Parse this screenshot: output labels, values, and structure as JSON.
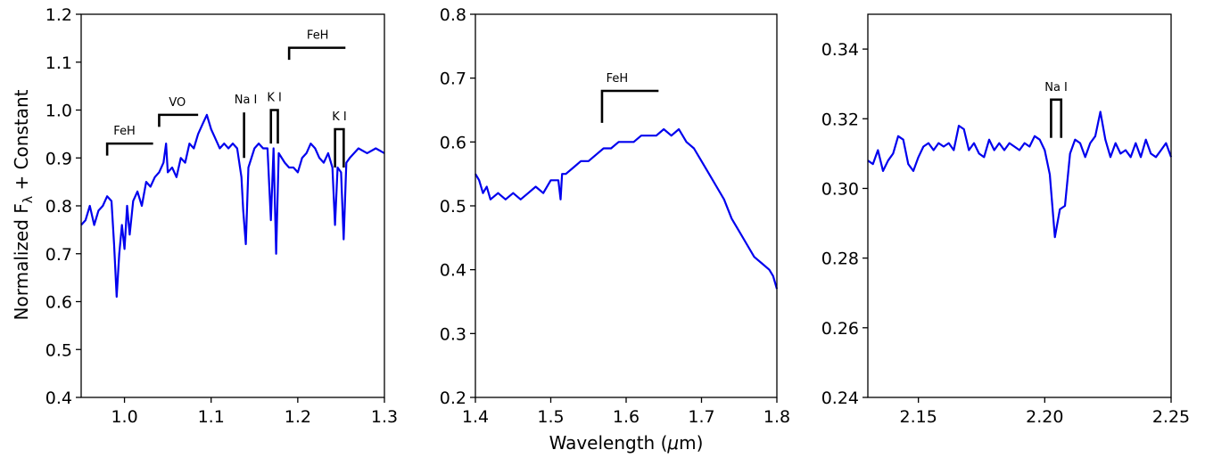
{
  "figure": {
    "xlabel_text": "Wavelength (",
    "xlabel_mu": "μ",
    "xlabel_unit": "m)",
    "ylabel_main": "Normalized F",
    "ylabel_sub": "λ",
    "ylabel_tail": " + Constant",
    "line_color": "#0000ee"
  },
  "chart_data": [
    {
      "type": "line",
      "xlim": [
        0.95,
        1.3
      ],
      "ylim": [
        0.4,
        1.2
      ],
      "xticks": [
        1.0,
        1.1,
        1.2,
        1.3
      ],
      "xtick_labels": [
        "1.0",
        "1.1",
        "1.2",
        "1.3"
      ],
      "yticks": [
        0.4,
        0.5,
        0.6,
        0.7,
        0.8,
        0.9,
        1.0,
        1.1,
        1.2
      ],
      "ytick_labels": [
        "0.4",
        "0.5",
        "0.6",
        "0.7",
        "0.8",
        "0.9",
        "1.0",
        "1.1",
        "1.2"
      ],
      "grid": false,
      "series": [
        {
          "points": [
            [
              0.95,
              0.76
            ],
            [
              0.955,
              0.77
            ],
            [
              0.96,
              0.8
            ],
            [
              0.965,
              0.76
            ],
            [
              0.97,
              0.79
            ],
            [
              0.975,
              0.8
            ],
            [
              0.98,
              0.82
            ],
            [
              0.985,
              0.81
            ],
            [
              0.988,
              0.72
            ],
            [
              0.991,
              0.61
            ],
            [
              0.994,
              0.7
            ],
            [
              0.997,
              0.76
            ],
            [
              1.0,
              0.71
            ],
            [
              1.003,
              0.8
            ],
            [
              1.006,
              0.74
            ],
            [
              1.01,
              0.81
            ],
            [
              1.015,
              0.83
            ],
            [
              1.02,
              0.8
            ],
            [
              1.025,
              0.85
            ],
            [
              1.03,
              0.84
            ],
            [
              1.035,
              0.86
            ],
            [
              1.04,
              0.87
            ],
            [
              1.045,
              0.89
            ],
            [
              1.048,
              0.93
            ],
            [
              1.05,
              0.87
            ],
            [
              1.055,
              0.88
            ],
            [
              1.06,
              0.86
            ],
            [
              1.065,
              0.9
            ],
            [
              1.07,
              0.89
            ],
            [
              1.075,
              0.93
            ],
            [
              1.08,
              0.92
            ],
            [
              1.085,
              0.95
            ],
            [
              1.09,
              0.97
            ],
            [
              1.095,
              0.99
            ],
            [
              1.1,
              0.96
            ],
            [
              1.105,
              0.94
            ],
            [
              1.11,
              0.92
            ],
            [
              1.115,
              0.93
            ],
            [
              1.12,
              0.92
            ],
            [
              1.125,
              0.93
            ],
            [
              1.13,
              0.92
            ],
            [
              1.135,
              0.86
            ],
            [
              1.137,
              0.79
            ],
            [
              1.14,
              0.72
            ],
            [
              1.143,
              0.88
            ],
            [
              1.15,
              0.92
            ],
            [
              1.155,
              0.93
            ],
            [
              1.16,
              0.92
            ],
            [
              1.165,
              0.92
            ],
            [
              1.169,
              0.77
            ],
            [
              1.172,
              0.92
            ],
            [
              1.175,
              0.7
            ],
            [
              1.178,
              0.91
            ],
            [
              1.185,
              0.89
            ],
            [
              1.19,
              0.88
            ],
            [
              1.195,
              0.88
            ],
            [
              1.2,
              0.87
            ],
            [
              1.205,
              0.9
            ],
            [
              1.21,
              0.91
            ],
            [
              1.215,
              0.93
            ],
            [
              1.22,
              0.92
            ],
            [
              1.225,
              0.9
            ],
            [
              1.23,
              0.89
            ],
            [
              1.235,
              0.91
            ],
            [
              1.24,
              0.88
            ],
            [
              1.243,
              0.76
            ],
            [
              1.246,
              0.88
            ],
            [
              1.25,
              0.87
            ],
            [
              1.253,
              0.73
            ],
            [
              1.256,
              0.89
            ],
            [
              1.26,
              0.9
            ],
            [
              1.27,
              0.92
            ],
            [
              1.28,
              0.91
            ],
            [
              1.29,
              0.92
            ],
            [
              1.3,
              0.91
            ]
          ]
        }
      ],
      "annotations": [
        {
          "label": "FeH",
          "x1": 0.98,
          "x2": 1.033,
          "y": 0.93,
          "left_tick_to": 0.905,
          "right_tick_to": null,
          "label_x": 1.0
        },
        {
          "label": "VO",
          "x1": 1.04,
          "x2": 1.085,
          "y": 0.99,
          "left_tick_to": 0.965,
          "right_tick_to": null,
          "label_x": 1.061
        },
        {
          "label": "Na I",
          "x1": 1.138,
          "x2": 1.138,
          "y": 0.995,
          "left_tick_to": 0.9,
          "right_tick_to": null,
          "label_x": 1.14
        },
        {
          "label": "K I",
          "x1": 1.169,
          "x2": 1.177,
          "y": 1.0,
          "left_tick_to": 0.93,
          "right_tick_to": 0.93,
          "label_x": 1.173
        },
        {
          "label": "FeH",
          "x1": 1.19,
          "x2": 1.255,
          "y": 1.13,
          "left_tick_to": 1.105,
          "right_tick_to": null,
          "label_x": 1.223
        },
        {
          "label": "K I",
          "x1": 1.243,
          "x2": 1.253,
          "y": 0.96,
          "left_tick_to": 0.88,
          "right_tick_to": 0.88,
          "label_x": 1.248
        }
      ]
    },
    {
      "type": "line",
      "xlim": [
        1.4,
        1.8
      ],
      "ylim": [
        0.2,
        0.8
      ],
      "xticks": [
        1.4,
        1.5,
        1.6,
        1.7,
        1.8
      ],
      "xtick_labels": [
        "1.4",
        "1.5",
        "1.6",
        "1.7",
        "1.8"
      ],
      "yticks": [
        0.2,
        0.3,
        0.4,
        0.5,
        0.6,
        0.7,
        0.8
      ],
      "ytick_labels": [
        "0.2",
        "0.3",
        "0.4",
        "0.5",
        "0.6",
        "0.7",
        "0.8"
      ],
      "grid": false,
      "series": [
        {
          "points": [
            [
              1.4,
              0.55
            ],
            [
              1.405,
              0.54
            ],
            [
              1.41,
              0.52
            ],
            [
              1.415,
              0.53
            ],
            [
              1.42,
              0.51
            ],
            [
              1.43,
              0.52
            ],
            [
              1.44,
              0.51
            ],
            [
              1.45,
              0.52
            ],
            [
              1.46,
              0.51
            ],
            [
              1.47,
              0.52
            ],
            [
              1.48,
              0.53
            ],
            [
              1.49,
              0.52
            ],
            [
              1.5,
              0.54
            ],
            [
              1.51,
              0.54
            ],
            [
              1.513,
              0.51
            ],
            [
              1.515,
              0.55
            ],
            [
              1.52,
              0.55
            ],
            [
              1.53,
              0.56
            ],
            [
              1.54,
              0.57
            ],
            [
              1.55,
              0.57
            ],
            [
              1.56,
              0.58
            ],
            [
              1.57,
              0.59
            ],
            [
              1.58,
              0.59
            ],
            [
              1.59,
              0.6
            ],
            [
              1.6,
              0.6
            ],
            [
              1.61,
              0.6
            ],
            [
              1.62,
              0.61
            ],
            [
              1.63,
              0.61
            ],
            [
              1.64,
              0.61
            ],
            [
              1.65,
              0.62
            ],
            [
              1.66,
              0.61
            ],
            [
              1.67,
              0.62
            ],
            [
              1.68,
              0.6
            ],
            [
              1.69,
              0.59
            ],
            [
              1.7,
              0.57
            ],
            [
              1.71,
              0.55
            ],
            [
              1.72,
              0.53
            ],
            [
              1.73,
              0.51
            ],
            [
              1.74,
              0.48
            ],
            [
              1.75,
              0.46
            ],
            [
              1.76,
              0.44
            ],
            [
              1.77,
              0.42
            ],
            [
              1.78,
              0.41
            ],
            [
              1.79,
              0.4
            ],
            [
              1.795,
              0.39
            ],
            [
              1.8,
              0.37
            ]
          ]
        }
      ],
      "annotations": [
        {
          "label": "FeH",
          "x1": 1.568,
          "x2": 1.643,
          "y": 0.68,
          "left_tick_to": 0.63,
          "right_tick_to": null,
          "label_x": 1.588
        }
      ]
    },
    {
      "type": "line",
      "xlim": [
        2.13,
        2.25
      ],
      "ylim": [
        0.24,
        0.35
      ],
      "xticks": [
        2.15,
        2.2,
        2.25
      ],
      "xtick_labels": [
        "2.15",
        "2.20",
        "2.25"
      ],
      "yticks": [
        0.24,
        0.26,
        0.28,
        0.3,
        0.32,
        0.34
      ],
      "ytick_labels": [
        "0.24",
        "0.26",
        "0.28",
        "0.30",
        "0.32",
        "0.34"
      ],
      "grid": false,
      "series": [
        {
          "points": [
            [
              2.13,
              0.308
            ],
            [
              2.132,
              0.307
            ],
            [
              2.134,
              0.311
            ],
            [
              2.136,
              0.305
            ],
            [
              2.138,
              0.308
            ],
            [
              2.14,
              0.31
            ],
            [
              2.142,
              0.315
            ],
            [
              2.144,
              0.314
            ],
            [
              2.146,
              0.307
            ],
            [
              2.148,
              0.305
            ],
            [
              2.15,
              0.309
            ],
            [
              2.152,
              0.312
            ],
            [
              2.154,
              0.313
            ],
            [
              2.156,
              0.311
            ],
            [
              2.158,
              0.313
            ],
            [
              2.16,
              0.312
            ],
            [
              2.162,
              0.313
            ],
            [
              2.164,
              0.311
            ],
            [
              2.166,
              0.318
            ],
            [
              2.168,
              0.317
            ],
            [
              2.17,
              0.311
            ],
            [
              2.172,
              0.313
            ],
            [
              2.174,
              0.31
            ],
            [
              2.176,
              0.309
            ],
            [
              2.178,
              0.314
            ],
            [
              2.18,
              0.311
            ],
            [
              2.182,
              0.313
            ],
            [
              2.184,
              0.311
            ],
            [
              2.186,
              0.313
            ],
            [
              2.188,
              0.312
            ],
            [
              2.19,
              0.311
            ],
            [
              2.192,
              0.313
            ],
            [
              2.194,
              0.312
            ],
            [
              2.196,
              0.315
            ],
            [
              2.198,
              0.314
            ],
            [
              2.2,
              0.311
            ],
            [
              2.202,
              0.304
            ],
            [
              2.204,
              0.286
            ],
            [
              2.206,
              0.294
            ],
            [
              2.208,
              0.295
            ],
            [
              2.21,
              0.31
            ],
            [
              2.212,
              0.314
            ],
            [
              2.214,
              0.313
            ],
            [
              2.216,
              0.309
            ],
            [
              2.218,
              0.313
            ],
            [
              2.22,
              0.315
            ],
            [
              2.222,
              0.322
            ],
            [
              2.224,
              0.314
            ],
            [
              2.226,
              0.309
            ],
            [
              2.228,
              0.313
            ],
            [
              2.23,
              0.31
            ],
            [
              2.232,
              0.311
            ],
            [
              2.234,
              0.309
            ],
            [
              2.236,
              0.313
            ],
            [
              2.238,
              0.309
            ],
            [
              2.24,
              0.314
            ],
            [
              2.242,
              0.31
            ],
            [
              2.244,
              0.309
            ],
            [
              2.246,
              0.311
            ],
            [
              2.248,
              0.313
            ],
            [
              2.25,
              0.309
            ]
          ]
        }
      ],
      "annotations": [
        {
          "label": "Na I",
          "x1": 2.2025,
          "x2": 2.2065,
          "y": 0.3255,
          "left_tick_to": 0.3145,
          "right_tick_to": 0.3145,
          "label_x": 2.2045
        }
      ]
    }
  ]
}
